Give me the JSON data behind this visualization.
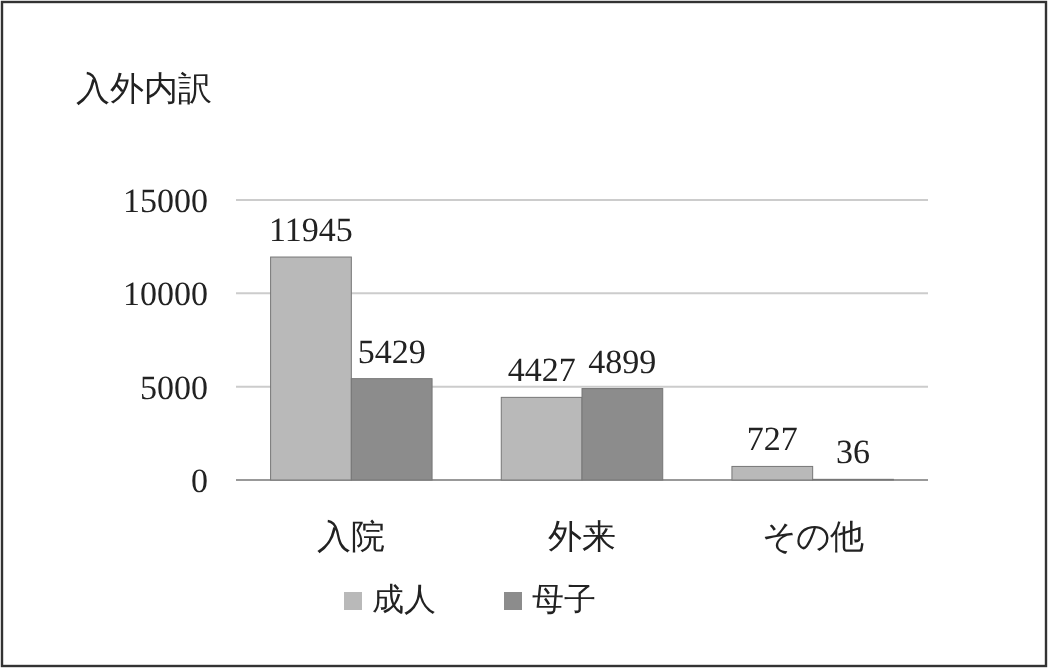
{
  "chart_data": {
    "type": "bar",
    "title": "入外内訳",
    "categories": [
      "入院",
      "外来",
      "その他"
    ],
    "series": [
      {
        "name": "成人",
        "color": "#b9b9b9",
        "values": [
          11945,
          4427,
          727
        ]
      },
      {
        "name": "母子",
        "color": "#8c8c8c",
        "values": [
          5429,
          4899,
          36
        ]
      }
    ],
    "ylim": [
      0,
      15000
    ],
    "yticks": [
      0,
      5000,
      10000,
      15000
    ],
    "grid": "y",
    "legend": "bottom",
    "data_labels": true
  }
}
